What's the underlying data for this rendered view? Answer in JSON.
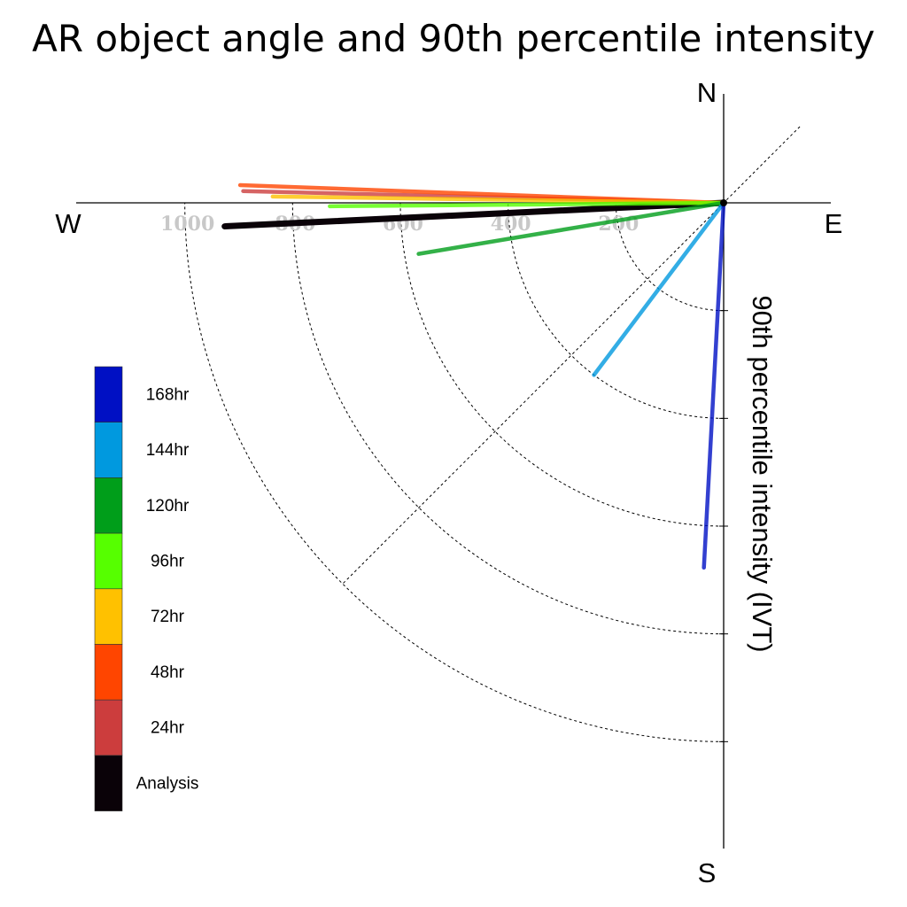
{
  "chart_data": {
    "type": "polar-line",
    "title": "AR object angle and 90th percentile intensity",
    "radial_label": "90th percentile intensity (IVT)",
    "compass": {
      "north": "N",
      "east": "E",
      "south": "S",
      "west": "W"
    },
    "radial_ticks": [
      200,
      400,
      600,
      800,
      1000
    ],
    "radial_tick_labels": [
      "200",
      "400",
      "600",
      "800",
      "1000"
    ],
    "radial_max": 1200,
    "sector": "south-west quadrant",
    "angle_convention": "degrees clockwise from north",
    "series": [
      {
        "name": "Analysis",
        "color": "#0a0208",
        "angle": 267.3,
        "value": 927
      },
      {
        "name": "24hr",
        "color": "#cc3d3d",
        "angle": 271.4,
        "value": 892
      },
      {
        "name": "48hr",
        "color": "#ff4500",
        "angle": 272.1,
        "value": 898
      },
      {
        "name": "72hr",
        "color": "#ffc100",
        "angle": 270.8,
        "value": 837
      },
      {
        "name": "96hr",
        "color": "#56ff00",
        "angle": 269.5,
        "value": 731
      },
      {
        "name": "120hr",
        "color": "#009e1a",
        "angle": 260.5,
        "value": 574
      },
      {
        "name": "144hr",
        "color": "#0099df",
        "angle": 217.0,
        "value": 400
      },
      {
        "name": "168hr",
        "color": "#0010c4",
        "angle": 183.1,
        "value": 678
      }
    ],
    "legend": {
      "position": "left",
      "entries": [
        "168hr",
        "144hr",
        "120hr",
        "96hr",
        "72hr",
        "48hr",
        "24hr",
        "Analysis"
      ]
    }
  }
}
